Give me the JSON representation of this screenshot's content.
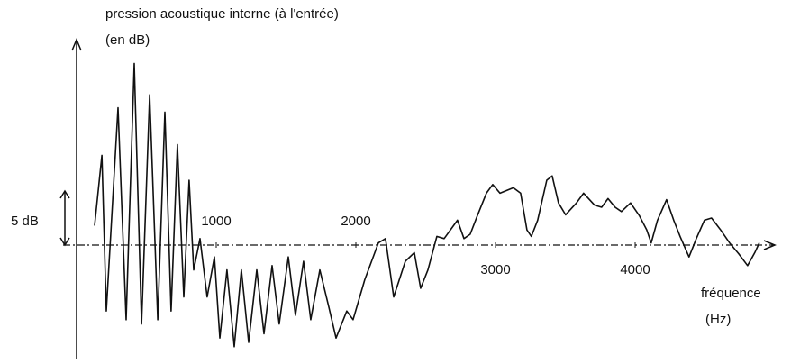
{
  "chart_data": {
    "type": "line",
    "ylabel": [
      "pression acoustique interne (à l'entrée)",
      "(en dB)"
    ],
    "xlabel": [
      "fréquence",
      "(Hz)"
    ],
    "scale_bar": {
      "label": "5 dB",
      "value": 5
    },
    "xlim": [
      0,
      5000
    ],
    "ylim": [
      -10.5,
      19
    ],
    "xticks": [
      1000,
      2000,
      3000,
      4000
    ],
    "color": "#111111",
    "x": [
      129,
      181,
      213,
      297,
      355,
      413,
      465,
      523,
      581,
      632,
      677,
      722,
      768,
      806,
      839,
      884,
      935,
      987,
      1026,
      1077,
      1129,
      1180,
      1232,
      1290,
      1342,
      1400,
      1451,
      1516,
      1567,
      1625,
      1677,
      1742,
      1806,
      1858,
      1935,
      1980,
      2064,
      2161,
      2212,
      2271,
      2354,
      2419,
      2464,
      2516,
      2580,
      2632,
      2728,
      2774,
      2819,
      2870,
      2935,
      2980,
      3032,
      3128,
      3180,
      3225,
      3257,
      3302,
      3367,
      3406,
      3451,
      3502,
      3580,
      3631,
      3709,
      3760,
      3806,
      3857,
      3902,
      3967,
      4031,
      4083,
      4115,
      4160,
      4225,
      4276,
      4322,
      4386,
      4438,
      4496,
      4547,
      4612,
      4676,
      4741,
      4805,
      4857,
      4889
    ],
    "values": [
      1.8,
      8.3,
      -6.1,
      12.7,
      -6.9,
      16.8,
      -7.3,
      13.9,
      -6.9,
      12.3,
      -6.1,
      9.3,
      -4.8,
      6.0,
      -2.3,
      0.6,
      -4.8,
      -1.1,
      -8.6,
      -2.3,
      -9.4,
      -2.3,
      -9.0,
      -2.3,
      -8.2,
      -1.9,
      -7.3,
      -1.1,
      -6.5,
      -1.5,
      -6.9,
      -2.3,
      -5.7,
      -8.6,
      -6.1,
      -6.9,
      -3.2,
      0.2,
      0.6,
      -4.8,
      -1.5,
      -0.7,
      -4.0,
      -2.3,
      0.8,
      0.6,
      2.3,
      0.6,
      1.0,
      2.7,
      4.8,
      5.6,
      4.8,
      5.3,
      4.8,
      1.4,
      0.8,
      2.3,
      6.0,
      6.4,
      3.9,
      2.8,
      3.9,
      4.8,
      3.7,
      3.5,
      4.3,
      3.5,
      3.1,
      3.9,
      2.7,
      1.4,
      0.2,
      2.3,
      4.2,
      2.3,
      0.8,
      -1.1,
      0.6,
      2.3,
      2.5,
      1.4,
      0.2,
      -0.8,
      -1.9,
      -0.7,
      0.2
    ]
  }
}
